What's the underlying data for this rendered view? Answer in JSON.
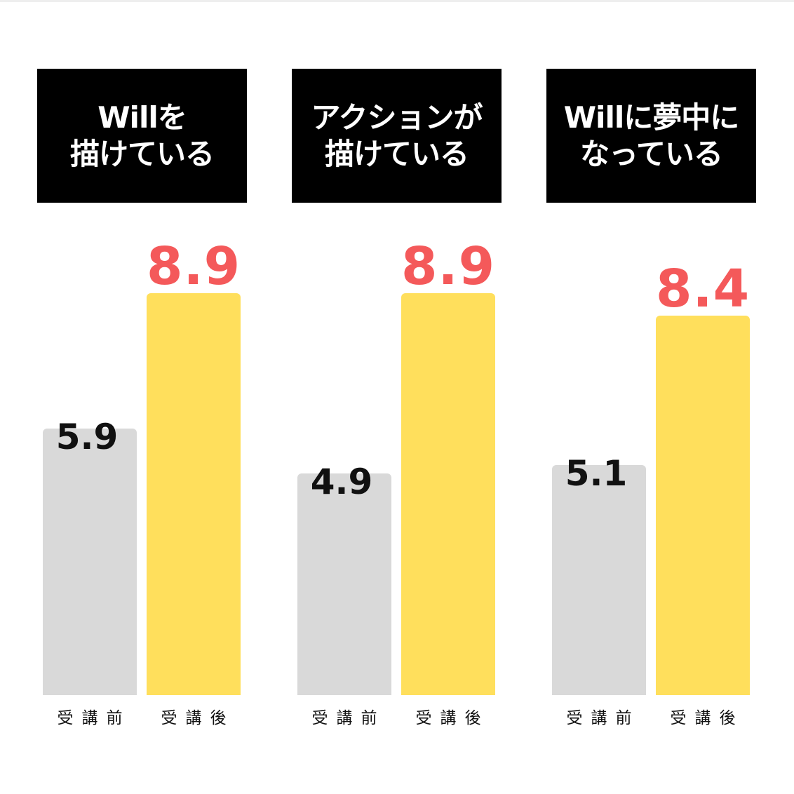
{
  "chart_data": [
    {
      "type": "bar",
      "title": "Willを\n描けている",
      "categories": [
        "受講前",
        "受講後"
      ],
      "values": [
        5.9,
        8.9
      ],
      "colors": [
        "#d9d9d9",
        "#ffdf5c"
      ],
      "value_label_colors": [
        "#111111",
        "#f4595a"
      ]
    },
    {
      "type": "bar",
      "title": "アクションが\n描けている",
      "categories": [
        "受講前",
        "受講後"
      ],
      "values": [
        4.9,
        8.9
      ],
      "colors": [
        "#d9d9d9",
        "#ffdf5c"
      ],
      "value_label_colors": [
        "#111111",
        "#f4595a"
      ]
    },
    {
      "type": "bar",
      "title": "Willに夢中に\nなっている",
      "categories": [
        "受講前",
        "受講後"
      ],
      "values": [
        5.1,
        8.4
      ],
      "colors": [
        "#d9d9d9",
        "#ffdf5c"
      ],
      "value_label_colors": [
        "#111111",
        "#f4595a"
      ]
    }
  ]
}
